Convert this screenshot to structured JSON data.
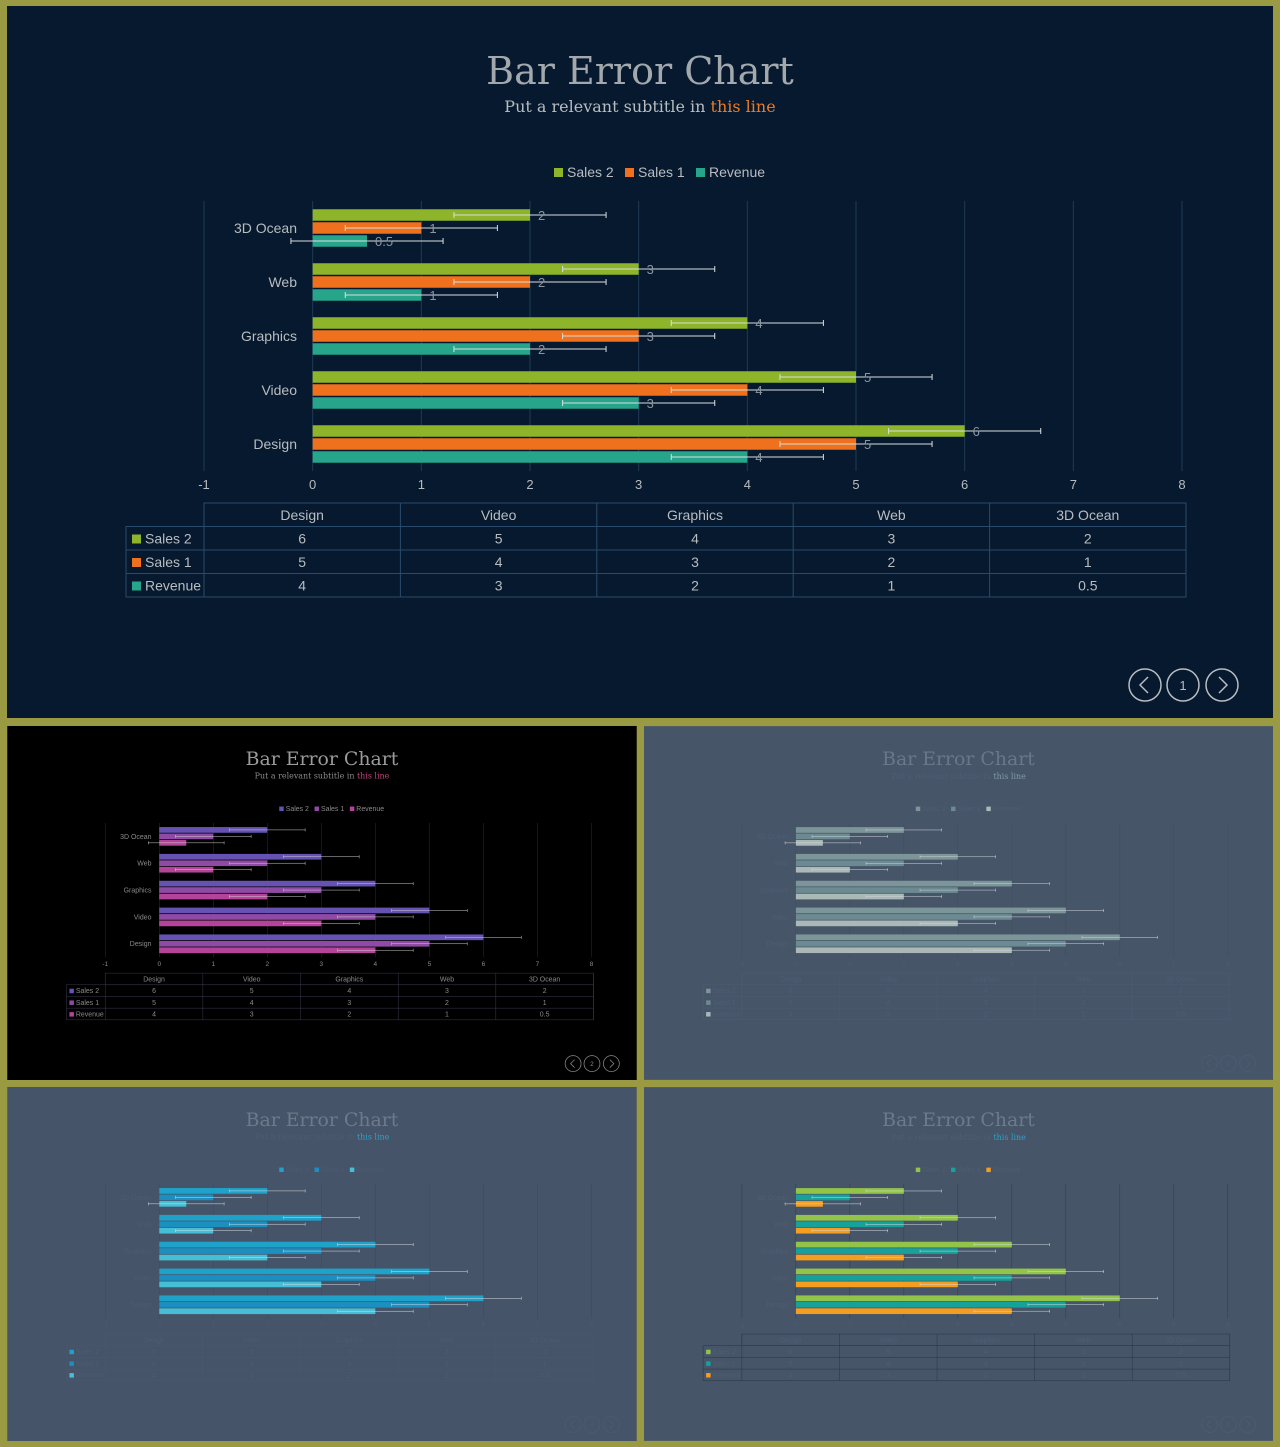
{
  "slides": [
    {
      "id": "s1",
      "title": "Bar Error Chart",
      "subtitle_prefix": "Put a relevant subtitle in ",
      "subtitle_highlight": "this line",
      "page_number": "1",
      "theme": {
        "background": "#06192e",
        "text": "#b9bcc0",
        "title": "#a3a8ad",
        "highlight": "#ee7b22",
        "grid": "#1f3a55",
        "table_border": "#2a4a6b",
        "error": "#d9dde0"
      },
      "series_colors": [
        "#8eb42a",
        "#f0711d",
        "#27a58a"
      ],
      "table_visible": true,
      "legend_visible": true,
      "labels_visible": true
    },
    {
      "id": "s2",
      "title": "Bar Error Chart",
      "subtitle_prefix": "Put a relevant subtitle in ",
      "subtitle_highlight": "this line",
      "page_number": "2",
      "theme": {
        "background": "#000000",
        "text": "#8a8a8a",
        "title": "#9a9a9a",
        "highlight": "#c0457d",
        "grid": "#2b2b45",
        "table_border": "#3a3a55",
        "error": "#d0d0d0"
      },
      "series_colors": [
        "#6552b2",
        "#8e4aa4",
        "#b4439a"
      ],
      "table_visible": true,
      "legend_visible": true,
      "labels_visible": false
    },
    {
      "id": "s3",
      "title": "Bar Error Chart",
      "subtitle_prefix": "Put a relevant subtitle in ",
      "subtitle_highlight": "this line",
      "page_number": "3",
      "theme": {
        "background": "#475569",
        "text": "#4e5d72",
        "title": "#6a778a",
        "highlight": "#7b9aa8",
        "grid": "#3f4c5f",
        "table_border": "#4f5d72",
        "error": "#d0d6dc"
      },
      "series_colors": [
        "#7c9598",
        "#6b8a91",
        "#aab8b6"
      ],
      "table_visible": true,
      "legend_visible": true,
      "labels_visible": false
    },
    {
      "id": "s4",
      "title": "Bar Error Chart",
      "subtitle_prefix": "Put a relevant subtitle in ",
      "subtitle_highlight": "this line",
      "page_number": "4",
      "theme": {
        "background": "#465469",
        "text": "#4d5b70",
        "title": "#6d7a8c",
        "highlight": "#2aa3c9",
        "grid": "#3c4a60",
        "table_border": "#4c5a70",
        "error": "#d8dde2"
      },
      "series_colors": [
        "#1ea2c9",
        "#1a8fc0",
        "#46bfd6"
      ],
      "table_visible": true,
      "legend_visible": true,
      "labels_visible": false
    },
    {
      "id": "s5",
      "title": "Bar Error Chart",
      "subtitle_prefix": "Put a relevant subtitle in ",
      "subtitle_highlight": "this line",
      "page_number": "5",
      "theme": {
        "background": "#475569",
        "text": "#4f5d72",
        "title": "#6d7a8c",
        "highlight": "#2aa3c9",
        "grid": "#2f3b4d",
        "table_border": "#2a3445",
        "error": "#d8dde2"
      },
      "series_colors": [
        "#93c44a",
        "#16a19a",
        "#f59d1e"
      ],
      "table_visible": true,
      "legend_visible": true,
      "labels_visible": false
    }
  ],
  "chart_data": {
    "type": "bar",
    "orientation": "horizontal",
    "categories": [
      "Design",
      "Video",
      "Graphics",
      "Web",
      "3D Ocean"
    ],
    "series": [
      {
        "name": "Sales 2",
        "values": [
          6,
          5,
          4,
          3,
          2
        ]
      },
      {
        "name": "Sales 1",
        "values": [
          5,
          4,
          3,
          2,
          1
        ]
      },
      {
        "name": "Revenue",
        "values": [
          4,
          3,
          2,
          1,
          0.5
        ]
      }
    ],
    "error_minus": 0.7,
    "error_plus": 0.7,
    "xlim": [
      -1,
      8
    ],
    "xticks": [
      "-1",
      "0",
      "1",
      "2",
      "3",
      "4",
      "5",
      "6",
      "7",
      "8"
    ],
    "legend_order": [
      "Sales 2",
      "Sales 1",
      "Revenue"
    ],
    "legend_position": "top",
    "data_table": true,
    "grid": true
  }
}
